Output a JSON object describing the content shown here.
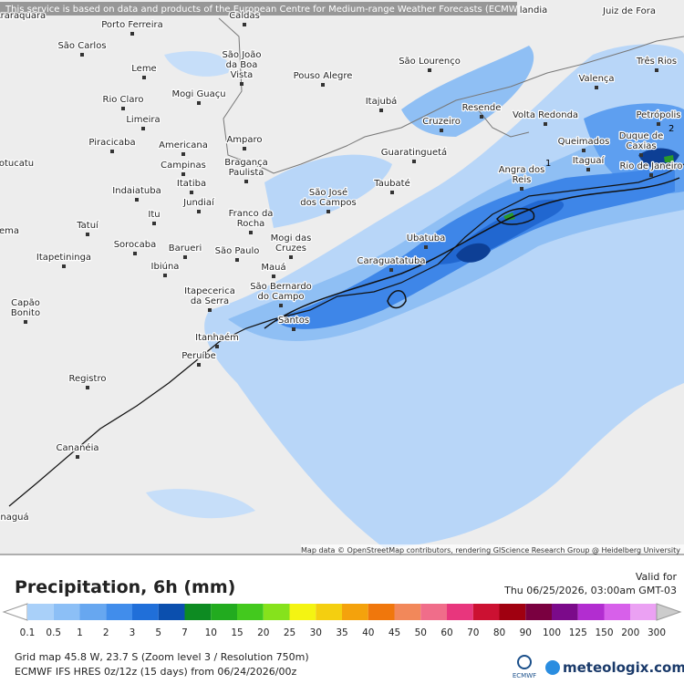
{
  "header": {
    "notice": "This service is based on data and products of the European Centre for Medium-range Weather Forecasts (ECMWF)",
    "attribution": "Map data © OpenStreetMap contributors, rendering GIScience Research Group @ Heidelberg University"
  },
  "map": {
    "cities": [
      {
        "lines": [
          "Araraquara"
        ]
      },
      {
        "lines": [
          "Porto Ferreira"
        ]
      },
      {
        "lines": [
          "Caldas"
        ]
      },
      {
        "lines": [
          "landia"
        ]
      },
      {
        "lines": [
          "Juiz de Fora"
        ]
      },
      {
        "lines": [
          "São Carlos"
        ]
      },
      {
        "lines": [
          "São João",
          "da Boa",
          "Vista"
        ]
      },
      {
        "lines": [
          "Leme"
        ]
      },
      {
        "lines": [
          "Pouso Alegre"
        ]
      },
      {
        "lines": [
          "São Lourenço"
        ]
      },
      {
        "lines": [
          "Três Rios"
        ]
      },
      {
        "lines": [
          "Valença"
        ]
      },
      {
        "lines": [
          "Mogi Guaçu"
        ]
      },
      {
        "lines": [
          "Itajubá"
        ]
      },
      {
        "lines": [
          "Rio Claro"
        ]
      },
      {
        "lines": [
          "Limeira"
        ]
      },
      {
        "lines": [
          "Resende"
        ]
      },
      {
        "lines": [
          "Volta Redonda"
        ]
      },
      {
        "lines": [
          "Petrópolis"
        ]
      },
      {
        "lines": [
          "Cruzeiro"
        ]
      },
      {
        "lines": [
          "Piracicaba"
        ]
      },
      {
        "lines": [
          "Americana"
        ]
      },
      {
        "lines": [
          "Amparo"
        ]
      },
      {
        "lines": [
          "Duque de",
          "Caxias"
        ]
      },
      {
        "lines": [
          "Queimados"
        ]
      },
      {
        "lines": [
          "Guaratinguetá"
        ]
      },
      {
        "lines": [
          "Campinas"
        ]
      },
      {
        "lines": [
          "Bragança",
          "Paulista"
        ]
      },
      {
        "lines": [
          "Itaguaí"
        ]
      },
      {
        "lines": [
          "Rio de Janeiro"
        ]
      },
      {
        "lines": [
          "Angra dos",
          "Reis"
        ]
      },
      {
        "lines": [
          "otucatu"
        ]
      },
      {
        "lines": [
          "Indaiatuba"
        ]
      },
      {
        "lines": [
          "Itatiba"
        ]
      },
      {
        "lines": [
          "Taubaté"
        ]
      },
      {
        "lines": [
          "São José",
          "dos Campos"
        ]
      },
      {
        "lines": [
          "Jundiaí"
        ]
      },
      {
        "lines": [
          "Itu"
        ]
      },
      {
        "lines": [
          "Franco da",
          "Rocha"
        ]
      },
      {
        "lines": [
          "Tatuí"
        ]
      },
      {
        "lines": [
          "rema"
        ]
      },
      {
        "lines": [
          "Ubatuba"
        ]
      },
      {
        "lines": [
          "Mogi das",
          "Cruzes"
        ]
      },
      {
        "lines": [
          "Sorocaba"
        ]
      },
      {
        "lines": [
          "Barueri"
        ]
      },
      {
        "lines": [
          "São Paulo"
        ]
      },
      {
        "lines": [
          "Itapetininga"
        ]
      },
      {
        "lines": [
          "Caraguatatuba"
        ]
      },
      {
        "lines": [
          "Ibiúna"
        ]
      },
      {
        "lines": [
          "Mauá"
        ]
      },
      {
        "lines": [
          "Itapecerica",
          "da Serra"
        ]
      },
      {
        "lines": [
          "São Bernardo",
          "do Campo"
        ]
      },
      {
        "lines": [
          "Capão",
          "Bonito"
        ]
      },
      {
        "lines": [
          "Santos"
        ]
      },
      {
        "lines": [
          "Itanhaém"
        ]
      },
      {
        "lines": [
          "Peruíbe"
        ]
      },
      {
        "lines": [
          "Registro"
        ]
      },
      {
        "lines": [
          "Cananéia"
        ]
      },
      {
        "lines": [
          "naguá"
        ]
      }
    ],
    "contour_labels": [
      "1",
      "2"
    ]
  },
  "footer": {
    "title": "Precipitation, 6h (mm)",
    "valid_label": "Valid for",
    "valid_time": "Thu 06/25/2026, 03:00am GMT-03",
    "legend": {
      "labels": [
        0.1,
        0.5,
        1,
        2,
        3,
        5,
        7,
        10,
        15,
        20,
        25,
        30,
        35,
        40,
        45,
        50,
        60,
        70,
        80,
        90,
        100,
        125,
        150,
        200,
        300
      ],
      "colors": [
        "#a9d0f9",
        "#8cbff6",
        "#67a7f0",
        "#418deb",
        "#206fd9",
        "#0b4fae",
        "#0d8b22",
        "#22ab1f",
        "#43c91e",
        "#86e21c",
        "#f4f412",
        "#f4cf10",
        "#f4a20c",
        "#f0770c",
        "#f2885a",
        "#f06d8a",
        "#e8367d",
        "#cc1132",
        "#a00010",
        "#7a0040",
        "#7b0a8a",
        "#b22dd0",
        "#d760ea",
        "#eba1f3",
        "#f9def9"
      ]
    },
    "grid_info": "Grid map 45.8 W, 23.7 S (Zoom level 3 / Resolution 750m)",
    "model_info": "ECMWF IFS HRES 0z/12z (15 days) from 06/24/2026/00z",
    "ecmwf_logo": "ECMWF",
    "brand": "meteologix.com"
  }
}
